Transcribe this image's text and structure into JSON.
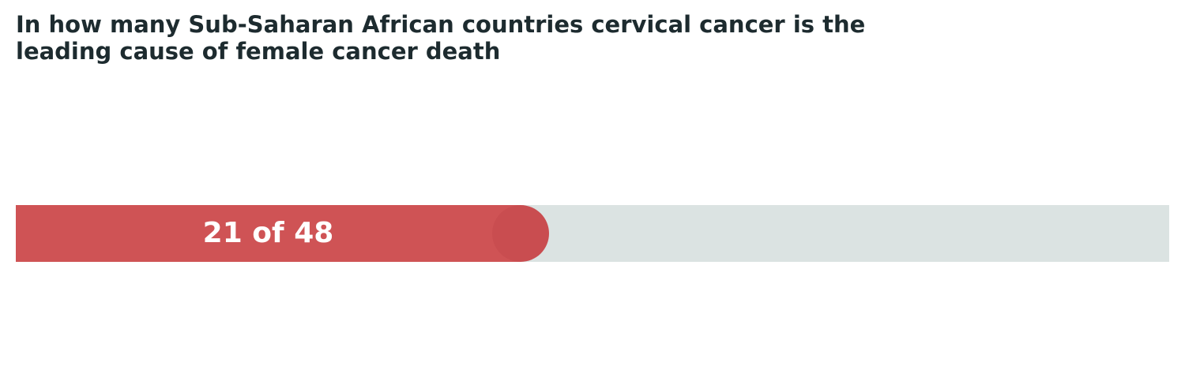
{
  "chart_data": {
    "type": "bar",
    "title": "In how many Sub-Saharan African countries cervical cancer is the leading cause of female cancer death",
    "value": 21,
    "total": 48,
    "value_label": "21 of 48",
    "orientation": "horizontal",
    "grid": false,
    "legend": "none"
  },
  "colors": {
    "fill": "#cf5355",
    "fill_cap": "#c94d50",
    "track": "#dbe3e2",
    "title_text": "#1d2b2f",
    "label_text": "#ffffff"
  }
}
